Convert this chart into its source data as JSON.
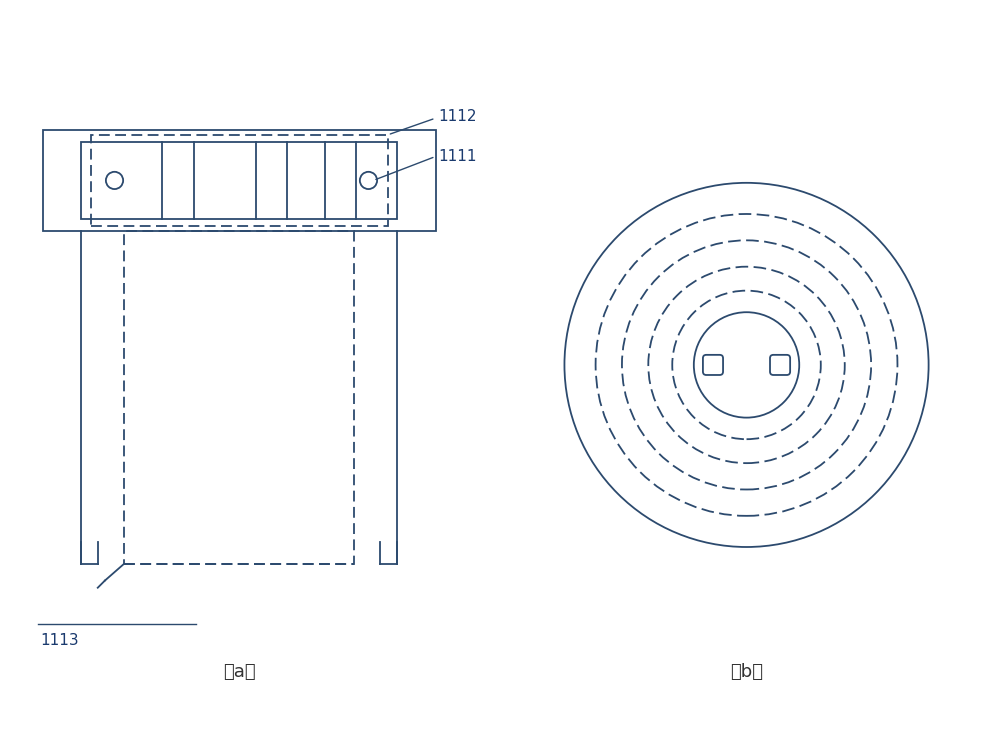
{
  "bg_color": "#ffffff",
  "line_color": "#2c4a6e",
  "label_color": "#1a3a6e",
  "label_1112": "1112",
  "label_1111": "1111",
  "label_1113": "1113",
  "label_a": "（a）",
  "label_b": "（b）"
}
